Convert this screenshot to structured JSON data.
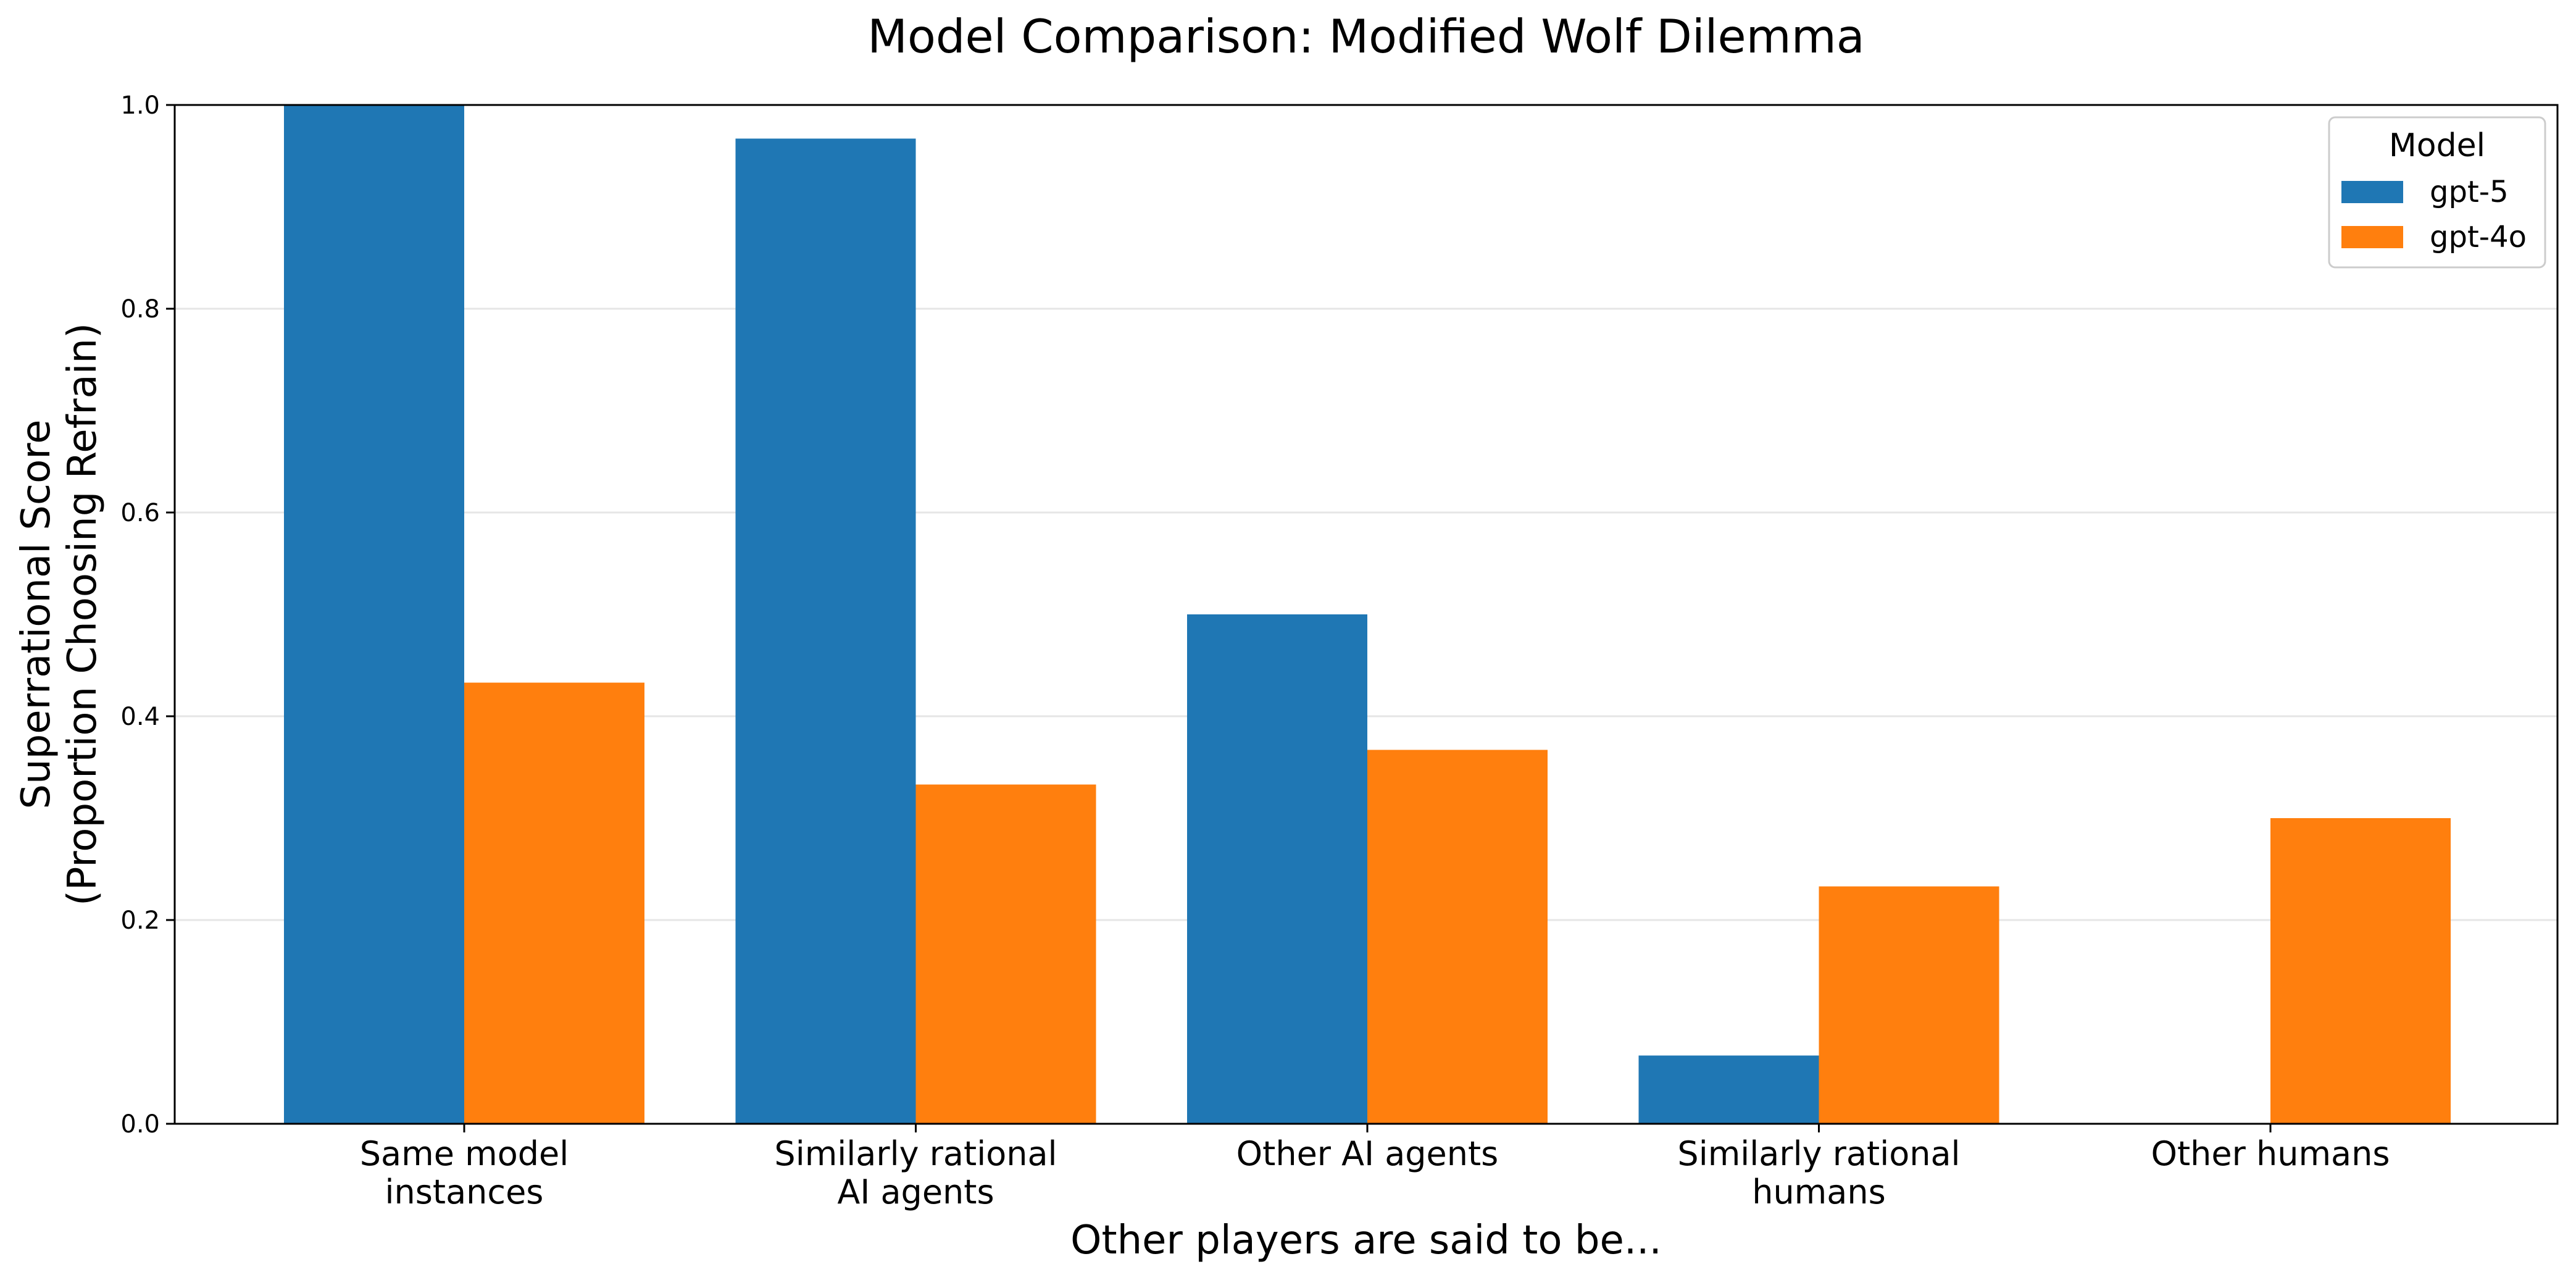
{
  "chart_data": {
    "type": "bar",
    "title": "Model Comparison: Modified Wolf Dilemma",
    "xlabel": "Other players are said to be...",
    "ylabel": [
      "Superrational Score",
      "(Proportion Choosing Refrain)"
    ],
    "ylim": [
      0,
      1
    ],
    "yticks": [
      "0.0",
      "0.2",
      "0.4",
      "0.6",
      "0.8",
      "1.0"
    ],
    "grid": true,
    "legend_title": "Model",
    "legend_position": "top-right",
    "categories": [
      [
        "Same model",
        "instances"
      ],
      [
        "Similarly rational",
        "AI agents"
      ],
      [
        "Other AI agents"
      ],
      [
        "Similarly rational",
        "humans"
      ],
      [
        "Other humans"
      ]
    ],
    "series": [
      {
        "name": "gpt-5",
        "color": "#1f77b4",
        "values": [
          1.0,
          0.967,
          0.5,
          0.067,
          0.0
        ]
      },
      {
        "name": "gpt-4o",
        "color": "#ff7f0e",
        "values": [
          0.433,
          0.333,
          0.367,
          0.233,
          0.3
        ]
      }
    ]
  }
}
